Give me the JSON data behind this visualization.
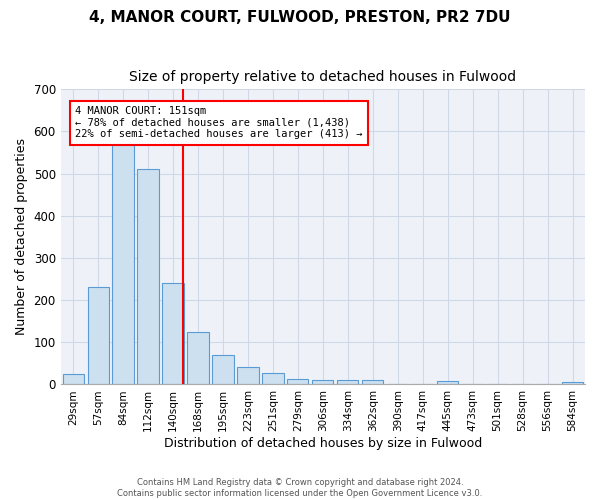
{
  "title": "4, MANOR COURT, FULWOOD, PRESTON, PR2 7DU",
  "subtitle": "Size of property relative to detached houses in Fulwood",
  "xlabel": "Distribution of detached houses by size in Fulwood",
  "ylabel": "Number of detached properties",
  "categories": [
    "29sqm",
    "57sqm",
    "84sqm",
    "112sqm",
    "140sqm",
    "168sqm",
    "195sqm",
    "223sqm",
    "251sqm",
    "279sqm",
    "306sqm",
    "334sqm",
    "362sqm",
    "390sqm",
    "417sqm",
    "445sqm",
    "473sqm",
    "501sqm",
    "528sqm",
    "556sqm",
    "584sqm"
  ],
  "values": [
    25,
    230,
    570,
    510,
    240,
    125,
    70,
    42,
    27,
    14,
    10,
    11,
    10,
    0,
    0,
    8,
    0,
    0,
    0,
    0,
    7
  ],
  "bar_color_face": "#cce0f0",
  "bar_color_edge": "#5b9bd5",
  "grid_color": "#d0d8e8",
  "background_color": "#eef2f8",
  "annotation_text": "4 MANOR COURT: 151sqm\n← 78% of detached houses are smaller (1,438)\n22% of semi-detached houses are larger (413) →",
  "ylim": [
    0,
    700
  ],
  "footer_line1": "Contains HM Land Registry data © Crown copyright and database right 2024.",
  "footer_line2": "Contains public sector information licensed under the Open Government Licence v3.0.",
  "title_fontsize": 11,
  "subtitle_fontsize": 10,
  "tick_fontsize": 7.5,
  "label_fontsize": 9,
  "bar_width": 0.85
}
